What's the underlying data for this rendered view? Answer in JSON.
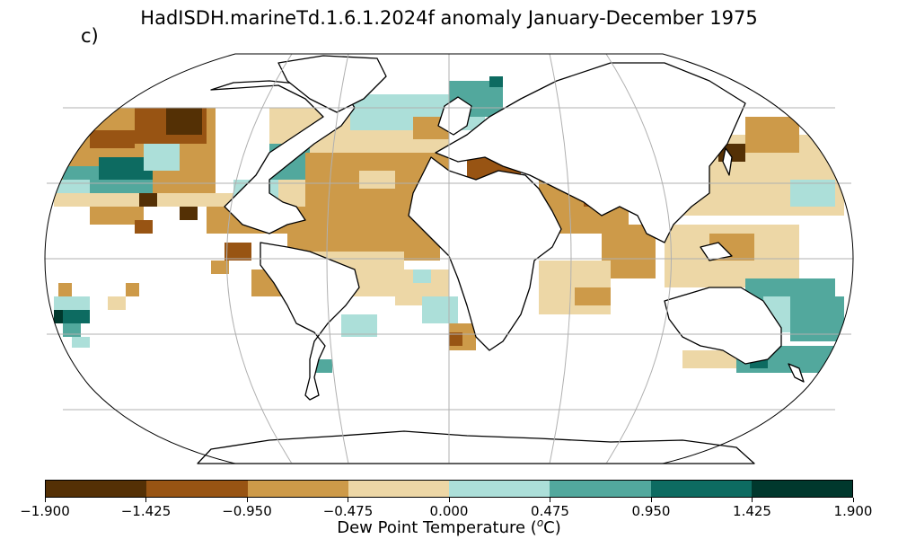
{
  "title": "HadISDH.marineTd.1.6.1.2024f anomaly January-December 1975",
  "panel_label": "c)",
  "colorbar": {
    "label_prefix": "Dew Point Temperature (",
    "label_super": "o",
    "label_suffix": "C)",
    "ticks": [
      "−1.900",
      "−1.425",
      "−0.950",
      "−0.475",
      "0.000",
      "0.475",
      "0.950",
      "1.425",
      "1.900"
    ],
    "bins": [
      {
        "range": [
          -1.9,
          -1.425
        ],
        "color": "#543005"
      },
      {
        "range": [
          -1.425,
          -0.95
        ],
        "color": "#985413"
      },
      {
        "range": [
          -0.95,
          -0.475
        ],
        "color": "#cd9a49"
      },
      {
        "range": [
          -0.475,
          0.0
        ],
        "color": "#edd7a6"
      },
      {
        "range": [
          0.0,
          0.475
        ],
        "color": "#acdfd9"
      },
      {
        "range": [
          0.475,
          0.95
        ],
        "color": "#52a89d"
      },
      {
        "range": [
          0.95,
          1.425
        ],
        "color": "#0d6b61"
      },
      {
        "range": [
          1.425,
          1.9
        ],
        "color": "#00382d"
      }
    ]
  },
  "map": {
    "projection": "Robinson",
    "graticule": true,
    "variable": "marine dew point temperature anomaly",
    "period": "January-December 1975"
  }
}
